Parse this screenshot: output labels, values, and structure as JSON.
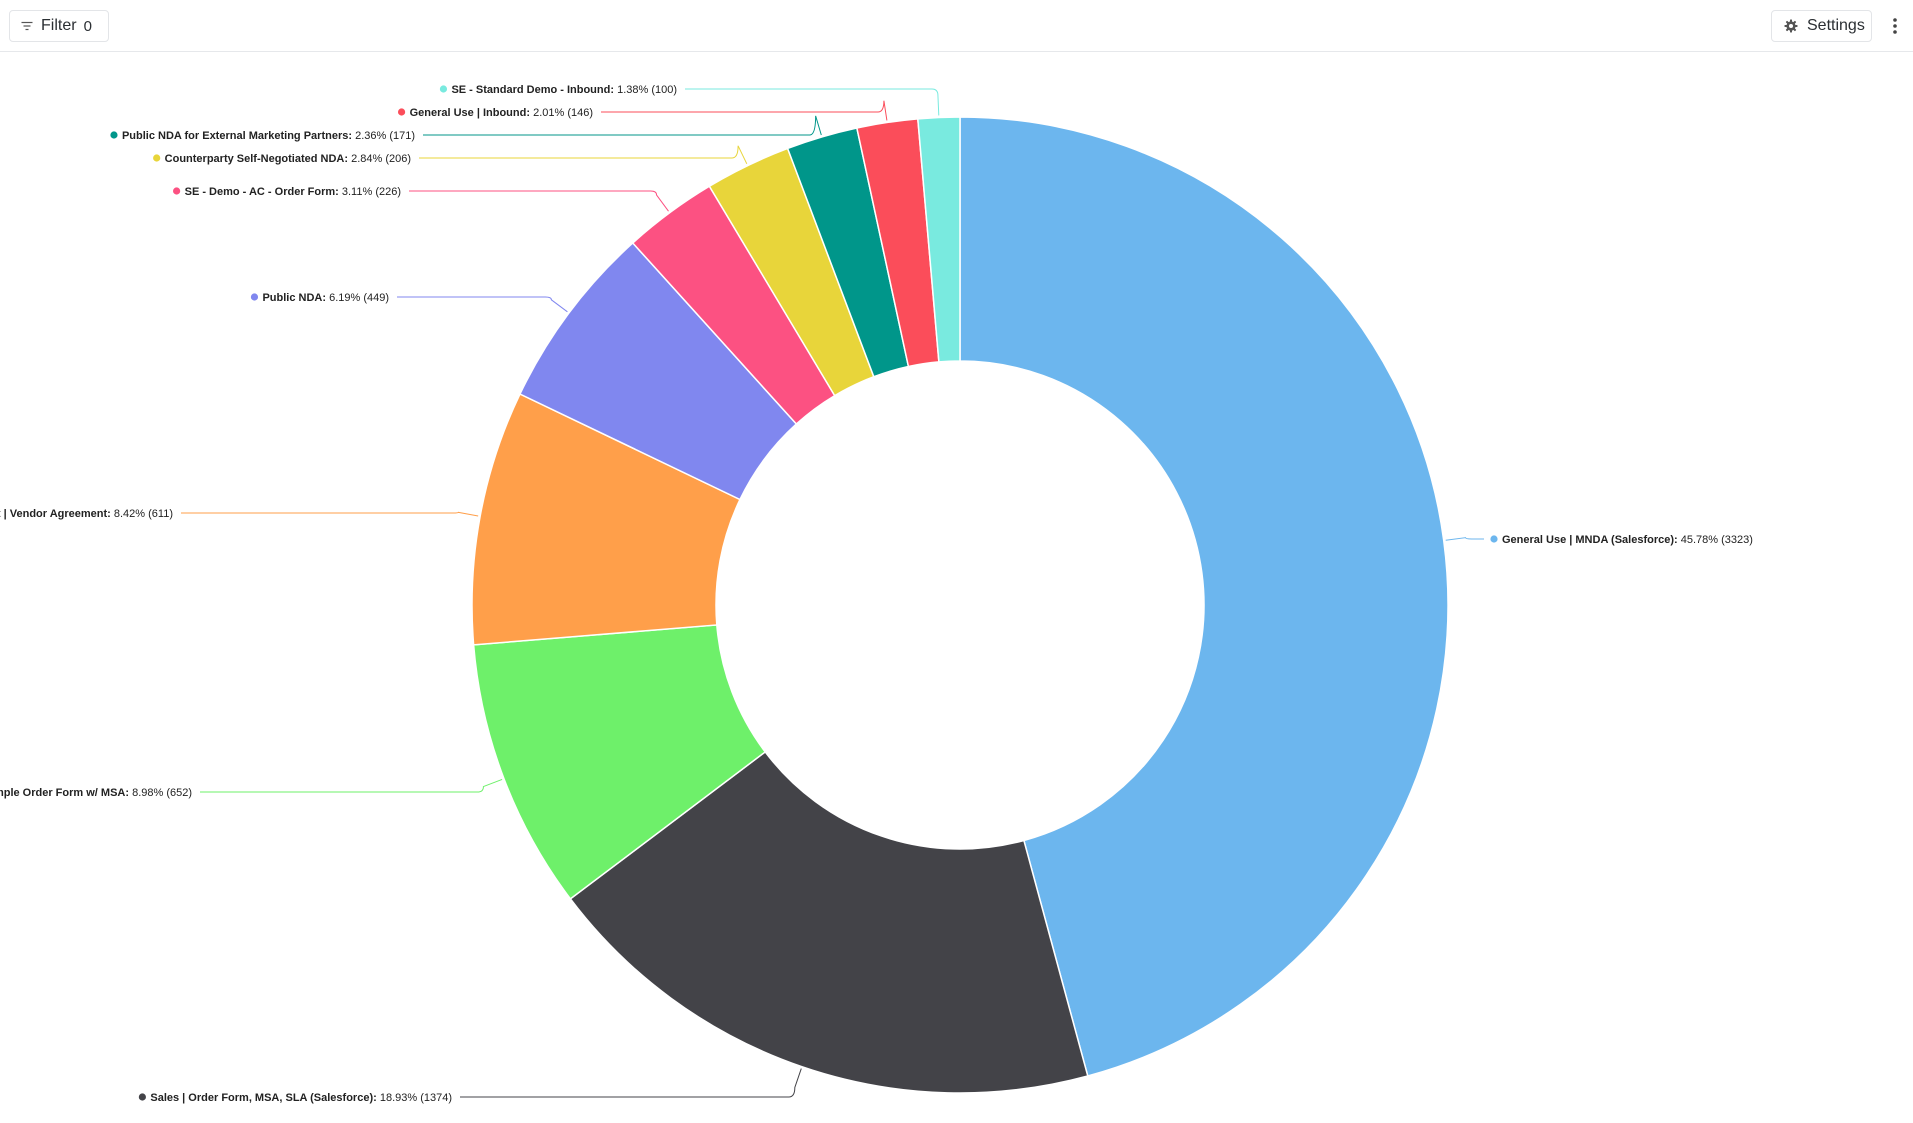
{
  "toolbar": {
    "filter_label": "Filter",
    "filter_count": "0",
    "settings_label": "Settings",
    "filter_icon": "filter-icon",
    "settings_icon": "gear-icon",
    "more_icon": "vertical-dots-icon"
  },
  "chart_data": {
    "type": "pie",
    "variant": "donut",
    "title": "",
    "start_angle_deg": 0,
    "direction": "clockwise",
    "slices": [
      {
        "name": "General Use | MNDA (Salesforce)",
        "percent": "45.78%",
        "count": "(3323)",
        "value": 3323,
        "color": "#6cb6ee"
      },
      {
        "name": "Sales | Order Form, MSA, SLA (Salesforce)",
        "percent": "18.93%",
        "count": "(1374)",
        "value": 1374,
        "color": "#434348"
      },
      {
        "name": "Sales | Simple Order Form w/ MSA",
        "percent": "8.98%",
        "count": "(652)",
        "value": 652,
        "color": "#6ef06a"
      },
      {
        "name": "Procurement | Vendor Agreement",
        "percent": "8.42%",
        "count": "(611)",
        "value": 611,
        "color": "#ff9f4a"
      },
      {
        "name": "Public NDA",
        "percent": "6.19%",
        "count": "(449)",
        "value": 449,
        "color": "#8087ef"
      },
      {
        "name": "SE - Demo - AC - Order Form",
        "percent": "3.11%",
        "count": "(226)",
        "value": 226,
        "color": "#fc5182"
      },
      {
        "name": "Counterparty Self-Negotiated NDA",
        "percent": "2.84%",
        "count": "(206)",
        "value": 206,
        "color": "#e8d53a"
      },
      {
        "name": "Public NDA for External Marketing Partners",
        "percent": "2.36%",
        "count": "(171)",
        "value": 171,
        "color": "#00968a"
      },
      {
        "name": "General Use | Inbound",
        "percent": "2.01%",
        "count": "(146)",
        "value": 146,
        "color": "#fb4d5a"
      },
      {
        "name": "SE - Standard Demo - Inbound",
        "percent": "1.38%",
        "count": "(100)",
        "value": 100,
        "color": "#79eadf"
      }
    ]
  }
}
